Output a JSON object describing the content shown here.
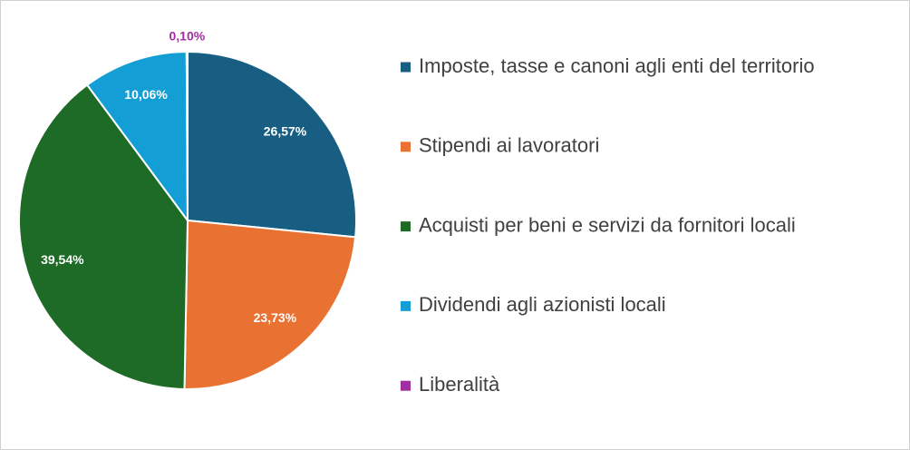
{
  "chart_data": {
    "type": "pie",
    "categories": [
      "Imposte, tasse e canoni agli enti del territorio",
      "Stipendi ai lavoratori",
      "Acquisti per beni e servizi da fornitori locali",
      "Dividendi agli azionisti locali",
      "Liberalità"
    ],
    "values": [
      26.57,
      23.73,
      39.54,
      10.06,
      0.1
    ],
    "value_labels": [
      "26,57%",
      "23,73%",
      "39,54%",
      "10,06%",
      "0,10%"
    ],
    "colors": [
      "#175e82",
      "#e97132",
      "#1d6b27",
      "#139fd6",
      "#a0309f"
    ]
  }
}
